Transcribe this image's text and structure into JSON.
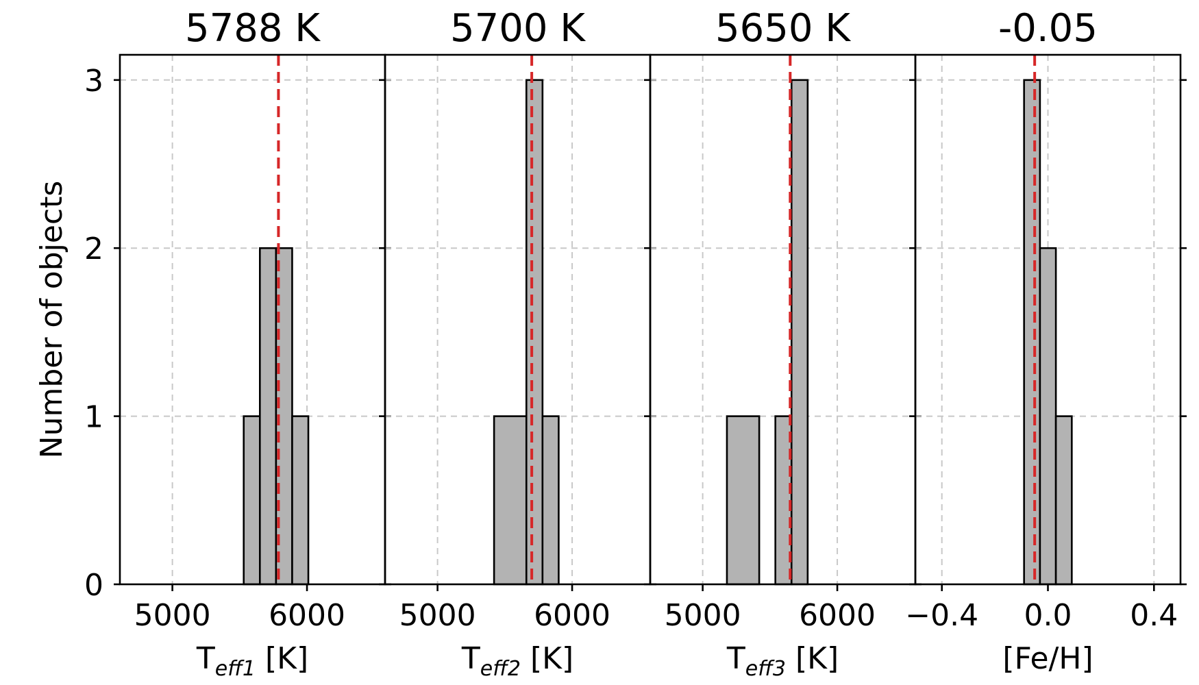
{
  "colors": {
    "bar_fill": "#b3b3b3",
    "ref_line": "#d62728"
  },
  "chart_data": [
    {
      "type": "bar",
      "title": "5788 K",
      "xlabel_main": "T",
      "xlabel_sub": "eff1",
      "xlabel_unit": " [K]",
      "ylabel": "Number of objects",
      "xlim": [
        4610,
        6580
      ],
      "ylim": [
        0,
        3.15
      ],
      "xticks": [
        {
          "value": 5000,
          "label": "5000"
        },
        {
          "value": 6000,
          "label": "6000"
        }
      ],
      "yticks": [
        {
          "value": 0,
          "label": "0"
        },
        {
          "value": 1,
          "label": "1"
        },
        {
          "value": 2,
          "label": "2"
        },
        {
          "value": 3,
          "label": "3"
        }
      ],
      "bins": [
        {
          "x0": 5530,
          "x1": 5650,
          "count": 1
        },
        {
          "x0": 5650,
          "x1": 5770,
          "count": 2
        },
        {
          "x0": 5770,
          "x1": 5890,
          "count": 2
        },
        {
          "x0": 5890,
          "x1": 6010,
          "count": 1
        }
      ],
      "reference_value": 5788,
      "grid": true
    },
    {
      "type": "bar",
      "title": "5700 K",
      "xlabel_main": "T",
      "xlabel_sub": "eff2",
      "xlabel_unit": " [K]",
      "ylabel": "",
      "xlim": [
        4610,
        6580
      ],
      "ylim": [
        0,
        3.15
      ],
      "xticks": [
        {
          "value": 5000,
          "label": "5000"
        },
        {
          "value": 6000,
          "label": "6000"
        }
      ],
      "yticks": [
        {
          "value": 0,
          "label": ""
        },
        {
          "value": 1,
          "label": ""
        },
        {
          "value": 2,
          "label": ""
        },
        {
          "value": 3,
          "label": ""
        }
      ],
      "bins": [
        {
          "x0": 5420,
          "x1": 5660,
          "count": 1
        },
        {
          "x0": 5660,
          "x1": 5780,
          "count": 3
        },
        {
          "x0": 5780,
          "x1": 5900,
          "count": 1
        }
      ],
      "reference_value": 5700,
      "grid": true
    },
    {
      "type": "bar",
      "title": "5650 K",
      "xlabel_main": "T",
      "xlabel_sub": "eff3",
      "xlabel_unit": " [K]",
      "ylabel": "",
      "xlim": [
        4610,
        6580
      ],
      "ylim": [
        0,
        3.15
      ],
      "xticks": [
        {
          "value": 5000,
          "label": "5000"
        },
        {
          "value": 6000,
          "label": "6000"
        }
      ],
      "yticks": [
        {
          "value": 0,
          "label": ""
        },
        {
          "value": 1,
          "label": ""
        },
        {
          "value": 2,
          "label": ""
        },
        {
          "value": 3,
          "label": ""
        }
      ],
      "bins": [
        {
          "x0": 5180,
          "x1": 5420,
          "count": 1
        },
        {
          "x0": 5540,
          "x1": 5660,
          "count": 1
        },
        {
          "x0": 5660,
          "x1": 5780,
          "count": 3
        }
      ],
      "reference_value": 5650,
      "grid": true
    },
    {
      "type": "bar",
      "title": "-0.05",
      "xlabel_main": "[Fe/H]",
      "xlabel_sub": "",
      "xlabel_unit": "",
      "ylabel": "",
      "xlim": [
        -0.5,
        0.5
      ],
      "ylim": [
        0,
        3.15
      ],
      "xticks": [
        {
          "value": -0.4,
          "label": "−0.4"
        },
        {
          "value": 0.0,
          "label": "0.0"
        },
        {
          "value": 0.4,
          "label": "0.4"
        }
      ],
      "yticks": [
        {
          "value": 0,
          "label": ""
        },
        {
          "value": 1,
          "label": ""
        },
        {
          "value": 2,
          "label": ""
        },
        {
          "value": 3,
          "label": ""
        }
      ],
      "bins": [
        {
          "x0": -0.09,
          "x1": -0.03,
          "count": 3
        },
        {
          "x0": -0.03,
          "x1": 0.03,
          "count": 2
        },
        {
          "x0": 0.03,
          "x1": 0.09,
          "count": 1
        }
      ],
      "reference_value": -0.05,
      "grid": true
    }
  ]
}
